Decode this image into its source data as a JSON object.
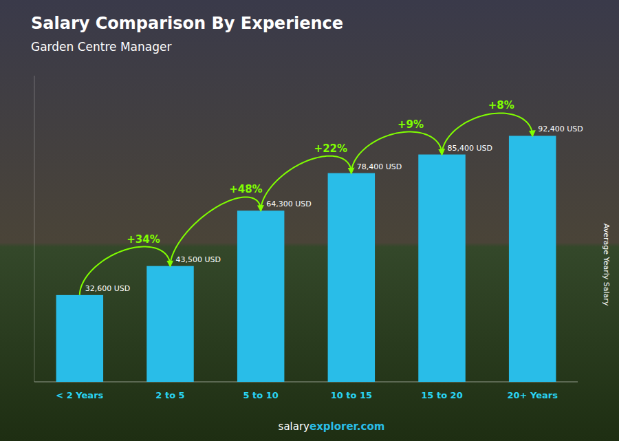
{
  "chart_data": {
    "type": "bar",
    "title": "Salary Comparison By Experience",
    "subtitle": "Garden Centre Manager",
    "categories": [
      "< 2 Years",
      "2 to 5",
      "5 to 10",
      "10 to 15",
      "15 to 20",
      "20+ Years"
    ],
    "values": [
      32600,
      43500,
      64300,
      78400,
      85400,
      92400
    ],
    "value_labels": [
      "32,600 USD",
      "43,500 USD",
      "64,300 USD",
      "78,400 USD",
      "85,400 USD",
      "92,400 USD"
    ],
    "data_labels": true,
    "annotations": [
      "+34%",
      "+48%",
      "+22%",
      "+9%",
      "+8%"
    ],
    "color": "#29bde8",
    "ylim": [
      0,
      115000
    ],
    "ylabel": "Average Yearly Salary",
    "footer": [
      "salary",
      "explorer.com"
    ],
    "tick_labels": "x",
    "grid": false
  }
}
